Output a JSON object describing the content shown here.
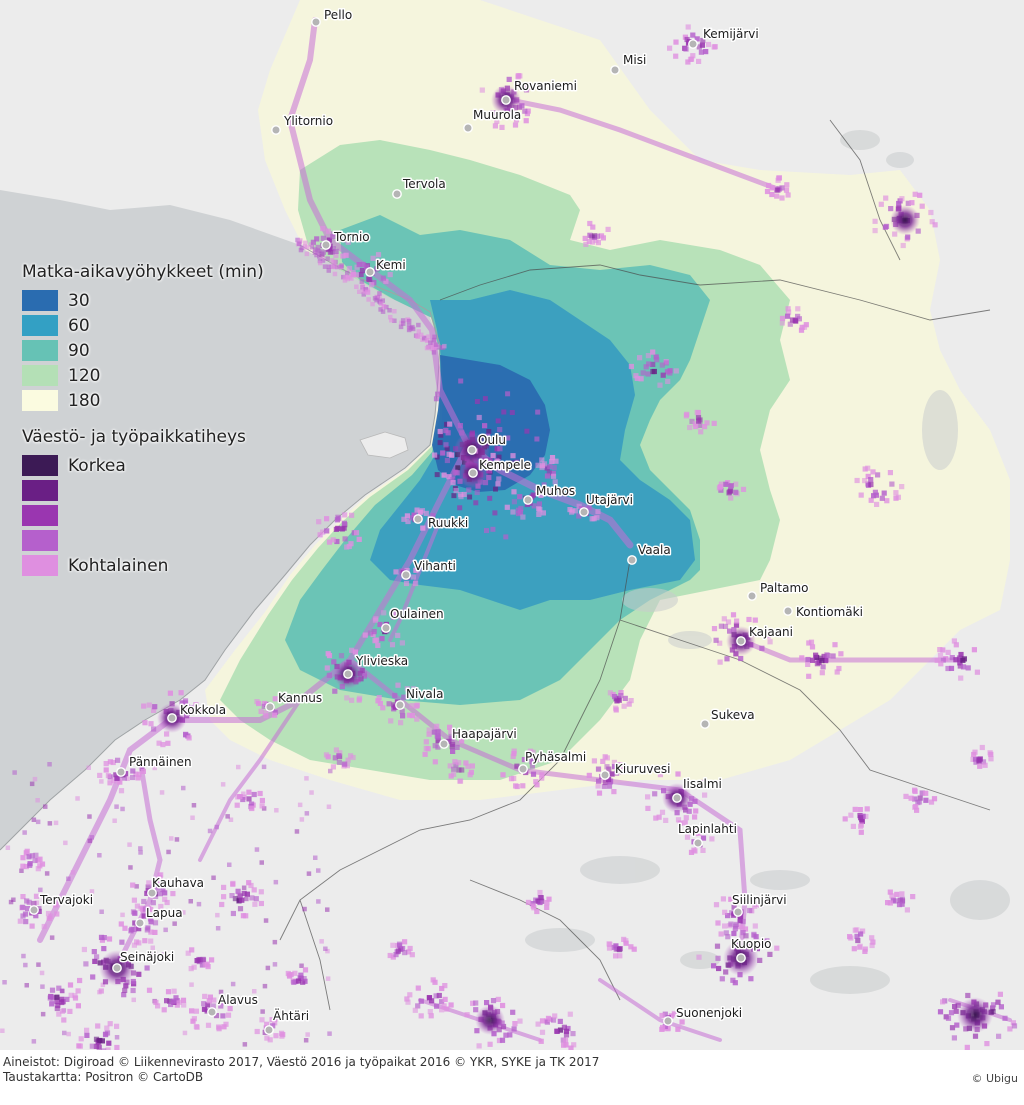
{
  "colors": {
    "sea": "#cfd2d4",
    "land": "#eeeeee",
    "zone_180": "#f5f5dc",
    "zone_120": "#b4e0b6",
    "zone_90": "#66c2b5",
    "zone_60": "#3a9ec0",
    "zone_30": "#2a6cb0",
    "density_high": "#3a1750",
    "density_low": "#e08fe0"
  },
  "legend": {
    "travel_time_title": "Matka-aikavyöhykkeet (min)",
    "travel_time_items": [
      {
        "label": "30",
        "color": "#2a6cb0"
      },
      {
        "label": "60",
        "color": "#33a0c4"
      },
      {
        "label": "90",
        "color": "#66c2b5"
      },
      {
        "label": "120",
        "color": "#b4e0b6"
      },
      {
        "label": "180",
        "color": "#fbfbe0"
      }
    ],
    "density_title": "Väestö- ja työpaikkatiheys",
    "density_items": [
      {
        "label": "Korkea",
        "color": "#3c1a55"
      },
      {
        "label": "",
        "color": "#6a1f85"
      },
      {
        "label": "",
        "color": "#9a36b0"
      },
      {
        "label": "",
        "color": "#b560cc"
      },
      {
        "label": "Kohtalainen",
        "color": "#df8fe0"
      }
    ]
  },
  "places": [
    {
      "name": "Pello"
    },
    {
      "name": "Kemijärvi"
    },
    {
      "name": "Misi"
    },
    {
      "name": "Rovaniemi"
    },
    {
      "name": "Muurola"
    },
    {
      "name": "Ylitornio"
    },
    {
      "name": "Tervola"
    },
    {
      "name": "Tornio"
    },
    {
      "name": "Kemi"
    },
    {
      "name": "Oulu"
    },
    {
      "name": "Kempele"
    },
    {
      "name": "Muhos"
    },
    {
      "name": "Utajärvi"
    },
    {
      "name": "Ruukki"
    },
    {
      "name": "Vaala"
    },
    {
      "name": "Vihanti"
    },
    {
      "name": "Paltamo"
    },
    {
      "name": "Kontiomäki"
    },
    {
      "name": "Oulainen"
    },
    {
      "name": "Kajaani"
    },
    {
      "name": "Ylivieska"
    },
    {
      "name": "Kannus"
    },
    {
      "name": "Nivala"
    },
    {
      "name": "Kokkola"
    },
    {
      "name": "Sukeva"
    },
    {
      "name": "Haapajärvi"
    },
    {
      "name": "Pännäinen"
    },
    {
      "name": "Pyhäsalmi"
    },
    {
      "name": "Kiuruvesi"
    },
    {
      "name": "Iisalmi"
    },
    {
      "name": "Lapinlahti"
    },
    {
      "name": "Kauhava"
    },
    {
      "name": "Tervajoki"
    },
    {
      "name": "Lapua"
    },
    {
      "name": "Siilinjärvi"
    },
    {
      "name": "Seinäjoki"
    },
    {
      "name": "Kuopio"
    },
    {
      "name": "Alavus"
    },
    {
      "name": "Ähtäri"
    },
    {
      "name": "Suonenjoki"
    }
  ],
  "credits": {
    "line1": "Aineistot: Digiroad © Liikennevirasto 2017, Väestö 2016 ja työpaikat 2016 © YKR, SYKE ja TK 2017",
    "line2": "Taustakartta: Positron © CartoDB",
    "brand": "© Ubigu"
  }
}
